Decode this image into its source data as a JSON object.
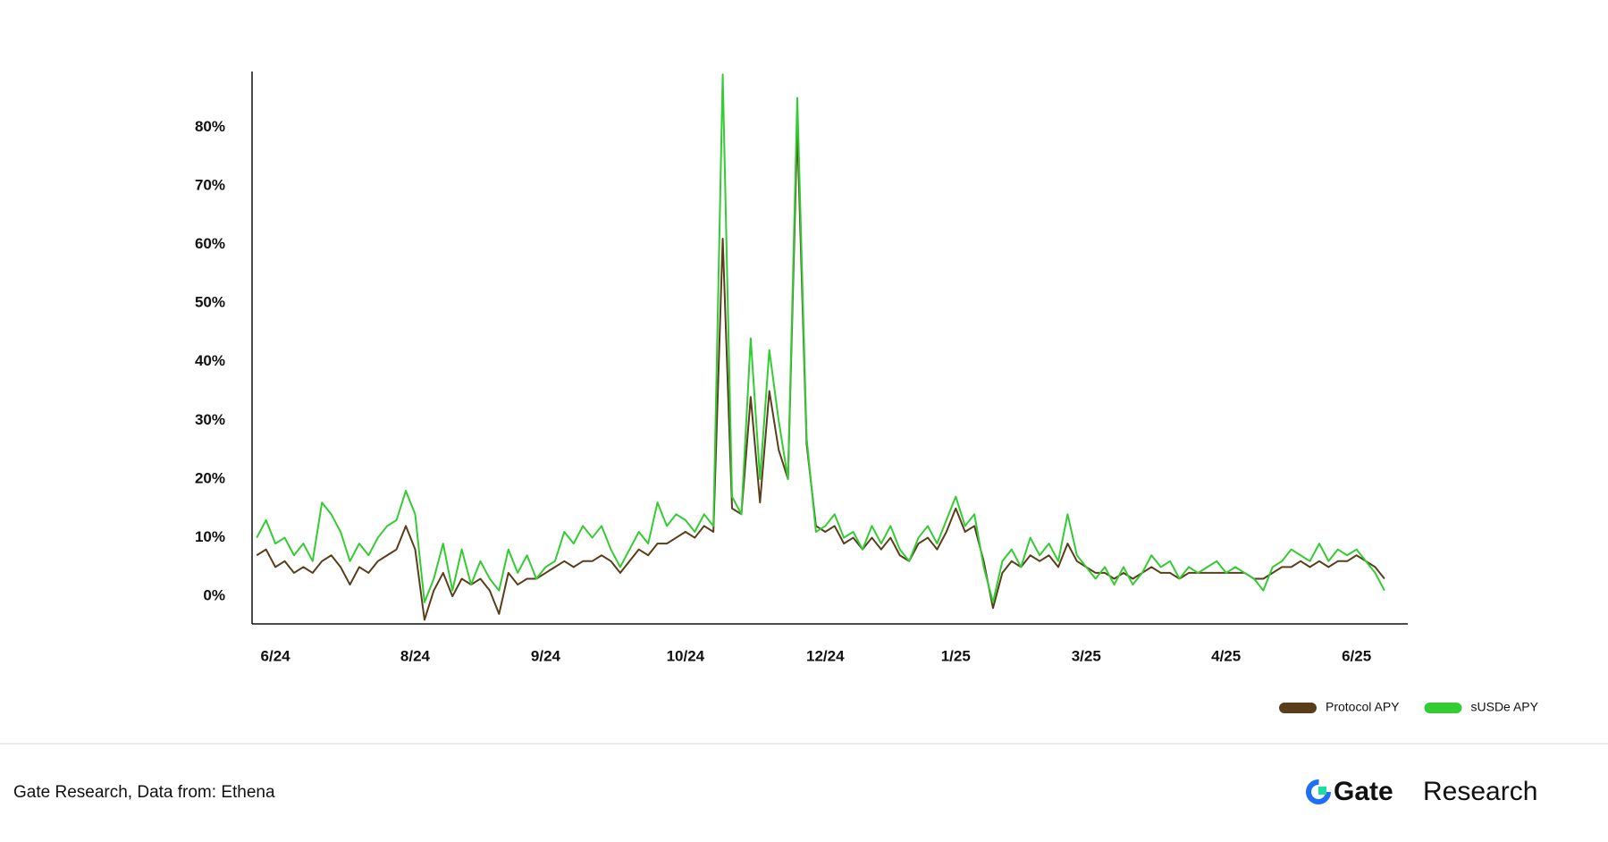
{
  "chart_data": {
    "type": "line",
    "categories": [
      null,
      null,
      "6/24",
      null,
      null,
      null,
      null,
      null,
      null,
      null,
      null,
      null,
      null,
      null,
      null,
      null,
      null,
      "8/24",
      null,
      null,
      null,
      null,
      null,
      null,
      null,
      null,
      null,
      null,
      null,
      null,
      null,
      "9/24",
      null,
      null,
      null,
      null,
      null,
      null,
      null,
      null,
      null,
      null,
      null,
      null,
      null,
      null,
      "10/24",
      null,
      null,
      null,
      null,
      null,
      null,
      null,
      null,
      null,
      null,
      null,
      null,
      null,
      null,
      "12/24",
      null,
      null,
      null,
      null,
      null,
      null,
      null,
      null,
      null,
      null,
      null,
      null,
      null,
      "1/25",
      null,
      null,
      null,
      null,
      null,
      null,
      null,
      null,
      null,
      null,
      null,
      null,
      null,
      "3/25",
      null,
      null,
      null,
      null,
      null,
      null,
      null,
      null,
      null,
      null,
      null,
      null,
      null,
      null,
      "4/25",
      null,
      null,
      null,
      null,
      null,
      null,
      null,
      null,
      null,
      null,
      null,
      null,
      null,
      "6/25",
      null,
      null,
      null,
      null,
      null
    ],
    "series": [
      {
        "name": "Protocol APY",
        "color": "#5a3e1b",
        "values": [
          7,
          8,
          5,
          6,
          4,
          5,
          4,
          6,
          7,
          5,
          2,
          5,
          4,
          6,
          7,
          8,
          12,
          8,
          -4,
          1,
          4,
          0,
          3,
          2,
          3,
          1,
          -3,
          4,
          2,
          3,
          3,
          4,
          5,
          6,
          5,
          6,
          6,
          7,
          6,
          4,
          6,
          8,
          7,
          9,
          9,
          10,
          11,
          10,
          12,
          11,
          61,
          15,
          14,
          34,
          16,
          35,
          25,
          20,
          80,
          26,
          12,
          11,
          12,
          9,
          10,
          8,
          10,
          8,
          10,
          7,
          6,
          9,
          10,
          8,
          11,
          15,
          11,
          12,
          6,
          -2,
          4,
          6,
          5,
          7,
          6,
          7,
          5,
          9,
          6,
          5,
          4,
          4,
          3,
          4,
          3,
          4,
          5,
          4,
          4,
          3,
          4,
          4,
          4,
          4,
          4,
          4,
          4,
          3,
          3,
          4,
          5,
          5,
          6,
          5,
          6,
          5,
          6,
          6,
          7,
          6,
          5,
          3,
          null,
          null
        ]
      },
      {
        "name": "sUSDe APY",
        "color": "#33cc33",
        "values": [
          10,
          13,
          9,
          10,
          7,
          9,
          6,
          16,
          14,
          11,
          6,
          9,
          7,
          10,
          12,
          13,
          18,
          14,
          -1,
          3,
          9,
          1,
          8,
          2,
          6,
          3,
          1,
          8,
          4,
          7,
          3,
          5,
          6,
          11,
          9,
          12,
          10,
          12,
          8,
          5,
          8,
          11,
          9,
          16,
          12,
          14,
          13,
          11,
          14,
          12,
          89,
          17,
          14,
          44,
          20,
          42,
          30,
          20,
          85,
          27,
          11,
          12,
          14,
          10,
          11,
          8,
          12,
          9,
          12,
          8,
          6,
          10,
          12,
          9,
          13,
          17,
          12,
          14,
          5,
          -1,
          6,
          8,
          5,
          10,
          7,
          9,
          6,
          14,
          7,
          5,
          3,
          5,
          2,
          5,
          2,
          4,
          7,
          5,
          6,
          3,
          5,
          4,
          5,
          6,
          4,
          5,
          4,
          3,
          1,
          5,
          6,
          8,
          7,
          6,
          9,
          6,
          8,
          7,
          8,
          6,
          4,
          1,
          null,
          null
        ]
      }
    ],
    "ylim": [
      -4.7,
      89.5
    ],
    "yticks": [
      {
        "value": 0,
        "label": "0%"
      },
      {
        "value": 10,
        "label": "10%"
      },
      {
        "value": 20,
        "label": "20%"
      },
      {
        "value": 30,
        "label": "30%"
      },
      {
        "value": 40,
        "label": "40%"
      },
      {
        "value": 50,
        "label": "50%"
      },
      {
        "value": 60,
        "label": "60%"
      },
      {
        "value": 70,
        "label": "70%"
      },
      {
        "value": 80,
        "label": "80%"
      }
    ],
    "grid": false,
    "legend": "bottom-right"
  },
  "footer": {
    "source": "Gate Research, Data from: Ethena",
    "logo_word": "Gate",
    "logo_suffix": "Research"
  }
}
